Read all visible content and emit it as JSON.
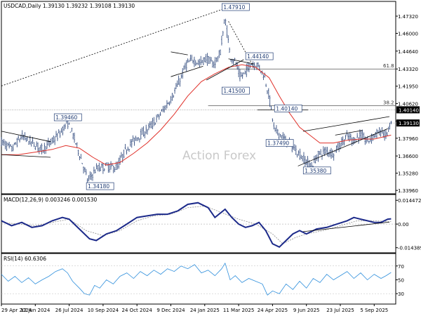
{
  "chart_data": [
    {
      "panel": "price",
      "type": "candlestick",
      "title": "USDCAD,Daily  1.39130 1.39232 1.39108 1.39130",
      "watermark": "Action Forex",
      "ylim": [
        1.337,
        1.4845
      ],
      "y_ticks": [
        1.3396,
        1.3528,
        1.366,
        1.3796,
        1.3928,
        1.4062,
        1.4195,
        1.4327,
        1.4464,
        1.46,
        1.4732
      ],
      "y_tick_labels": [
        "1.33960",
        "1.35280",
        "1.36600",
        "1.37960",
        "",
        "1.40620",
        "1.41950",
        "1.43320",
        "1.44640",
        "1.46000",
        "1.47320"
      ],
      "current_price": {
        "value": 1.3913,
        "label": "1.39130"
      },
      "level_marker": {
        "value": 1.4014,
        "label": "1.40140"
      },
      "fib_levels": [
        {
          "label": "61.8",
          "value": 1.4327
        },
        {
          "label": "38.2",
          "value": 1.4045
        }
      ],
      "x_labels": [
        "29 Apr 2024",
        "12 Jun 2024",
        "26 Jul 2024",
        "10 Sep 2024",
        "24 Oct 2024",
        "9 Dec 2024",
        "24 Jan 2025",
        "11 Mar 2025",
        "24 Apr 2025",
        "9 Jun 2025",
        "23 Jul 2025",
        "5 Sep 2025"
      ],
      "annotations": [
        {
          "text": "1.47910",
          "date_index": 6.55,
          "value": 1.4791
        },
        {
          "text": "1.39460",
          "date_index": 1.6,
          "value": 1.3946
        },
        {
          "text": "1.34180",
          "date_index": 2.55,
          "value": 1.3418
        },
        {
          "text": "1.41500",
          "date_index": 6.55,
          "value": 1.415
        },
        {
          "text": "1.44140",
          "date_index": 7.25,
          "value": 1.4414
        },
        {
          "text": "1.40140",
          "date_index": 8.1,
          "value": 1.4014
        },
        {
          "text": "1.37490",
          "date_index": 7.85,
          "value": 1.3749
        },
        {
          "text": "1.35380",
          "date_index": 8.95,
          "value": 1.3538
        }
      ],
      "path_close": [
        [
          0,
          1.377
        ],
        [
          0.3,
          1.371
        ],
        [
          0.6,
          1.381
        ],
        [
          0.9,
          1.376
        ],
        [
          1.2,
          1.371
        ],
        [
          1.5,
          1.377
        ],
        [
          1.75,
          1.384
        ],
        [
          1.95,
          1.392
        ],
        [
          2.1,
          1.383
        ],
        [
          2.35,
          1.364
        ],
        [
          2.55,
          1.347
        ],
        [
          2.8,
          1.356
        ],
        [
          3.1,
          1.358
        ],
        [
          3.4,
          1.357
        ],
        [
          3.7,
          1.372
        ],
        [
          4.0,
          1.38
        ],
        [
          4.3,
          1.386
        ],
        [
          4.55,
          1.393
        ],
        [
          4.8,
          1.402
        ],
        [
          5.05,
          1.412
        ],
        [
          5.25,
          1.423
        ],
        [
          5.45,
          1.436
        ],
        [
          5.65,
          1.44
        ],
        [
          5.85,
          1.437
        ],
        [
          6.05,
          1.441
        ],
        [
          6.25,
          1.436
        ],
        [
          6.45,
          1.444
        ],
        [
          6.6,
          1.472
        ],
        [
          6.75,
          1.443
        ],
        [
          6.9,
          1.438
        ],
        [
          7.05,
          1.426
        ],
        [
          7.2,
          1.43
        ],
        [
          7.35,
          1.437
        ],
        [
          7.55,
          1.436
        ],
        [
          7.75,
          1.428
        ],
        [
          7.9,
          1.412
        ],
        [
          8.05,
          1.386
        ],
        [
          8.25,
          1.382
        ],
        [
          8.45,
          1.376
        ],
        [
          8.7,
          1.37
        ],
        [
          8.95,
          1.363
        ],
        [
          9.15,
          1.358
        ],
        [
          9.35,
          1.367
        ],
        [
          9.6,
          1.37
        ],
        [
          9.8,
          1.368
        ],
        [
          10.0,
          1.375
        ],
        [
          10.2,
          1.381
        ],
        [
          10.4,
          1.378
        ],
        [
          10.6,
          1.382
        ],
        [
          10.8,
          1.377
        ],
        [
          11.0,
          1.382
        ],
        [
          11.2,
          1.385
        ],
        [
          11.35,
          1.381
        ],
        [
          11.5,
          1.391
        ]
      ],
      "ma_line": [
        [
          0,
          1.367
        ],
        [
          0.5,
          1.367
        ],
        [
          1.0,
          1.369
        ],
        [
          1.5,
          1.371
        ],
        [
          1.9,
          1.374
        ],
        [
          2.3,
          1.372
        ],
        [
          2.7,
          1.365
        ],
        [
          3.1,
          1.359
        ],
        [
          3.5,
          1.361
        ],
        [
          3.9,
          1.368
        ],
        [
          4.3,
          1.376
        ],
        [
          4.7,
          1.386
        ],
        [
          5.1,
          1.398
        ],
        [
          5.5,
          1.412
        ],
        [
          5.9,
          1.423
        ],
        [
          6.3,
          1.429
        ],
        [
          6.7,
          1.434
        ],
        [
          7.1,
          1.436
        ],
        [
          7.5,
          1.434
        ],
        [
          7.9,
          1.426
        ],
        [
          8.2,
          1.412
        ],
        [
          8.5,
          1.399
        ],
        [
          8.8,
          1.388
        ],
        [
          9.1,
          1.382
        ],
        [
          9.4,
          1.376
        ],
        [
          9.8,
          1.376
        ],
        [
          10.2,
          1.378
        ],
        [
          10.6,
          1.379
        ],
        [
          11.0,
          1.379
        ],
        [
          11.5,
          1.382
        ]
      ],
      "trendlines": [
        {
          "from": [
            0,
            1.385
          ],
          "to": [
            1.45,
            1.377
          ]
        },
        {
          "from": [
            0,
            1.367
          ],
          "to": [
            1.45,
            1.365
          ]
        },
        {
          "from": [
            0,
            1.4197
          ],
          "to": [
            6.55,
            1.4787
          ]
        },
        {
          "from": [
            5.0,
            1.4458
          ],
          "to": [
            5.5,
            1.4435
          ]
        },
        {
          "from": [
            5.0,
            1.4268
          ],
          "to": [
            5.95,
            1.4348
          ]
        },
        {
          "from": [
            6.05,
            1.4242
          ],
          "to": [
            7.15,
            1.4399
          ]
        },
        {
          "from": [
            6.7,
            1.4692
          ],
          "to": [
            7.45,
            1.4339
          ]
        },
        {
          "from": [
            6.7,
            1.4405
          ],
          "to": [
            7.45,
            1.4366
          ]
        },
        {
          "from": [
            7.55,
            1.4014
          ],
          "to": [
            9.05,
            1.4014
          ]
        },
        {
          "from": [
            8.9,
            1.3849
          ],
          "to": [
            11.45,
            1.3962
          ]
        },
        {
          "from": [
            8.75,
            1.3583
          ],
          "to": [
            11.4,
            1.3869
          ]
        },
        {
          "from": [
            9.85,
            1.382
          ],
          "to": [
            10.65,
            1.3856
          ]
        }
      ]
    },
    {
      "panel": "macd",
      "type": "line",
      "title": "MACD(12,26,9) 0.003246 0.001530",
      "ylim": [
        -0.0175,
        0.018
      ],
      "y_ticks": [
        0.014472,
        0.0,
        -0.014389
      ],
      "y_tick_labels": [
        "0.014472",
        "0.00",
        "-0.014389"
      ],
      "series": [
        {
          "values": [
            [
              0,
              0.002
            ],
            [
              0.3,
              -0.001
            ],
            [
              0.6,
              0.001
            ],
            [
              0.9,
              -0.002
            ],
            [
              1.2,
              -0.001
            ],
            [
              1.5,
              0.002
            ],
            [
              1.8,
              0.004
            ],
            [
              2.0,
              0.003
            ],
            [
              2.3,
              -0.003
            ],
            [
              2.6,
              -0.009
            ],
            [
              2.8,
              -0.01
            ],
            [
              3.1,
              -0.006
            ],
            [
              3.4,
              -0.004
            ],
            [
              3.7,
              0.0
            ],
            [
              4.0,
              0.004
            ],
            [
              4.3,
              0.005
            ],
            [
              4.6,
              0.006
            ],
            [
              4.9,
              0.006
            ],
            [
              5.2,
              0.008
            ],
            [
              5.5,
              0.012
            ],
            [
              5.8,
              0.013
            ],
            [
              6.1,
              0.01
            ],
            [
              6.3,
              0.004
            ],
            [
              6.6,
              0.009
            ],
            [
              6.8,
              0.004
            ],
            [
              7.0,
              0.0
            ],
            [
              7.2,
              -0.002
            ],
            [
              7.4,
              -0.001
            ],
            [
              7.6,
              0.001
            ],
            [
              7.8,
              -0.004
            ],
            [
              8.0,
              -0.012
            ],
            [
              8.2,
              -0.014
            ],
            [
              8.4,
              -0.01
            ],
            [
              8.6,
              -0.006
            ],
            [
              8.8,
              -0.004
            ],
            [
              9.0,
              -0.006
            ],
            [
              9.3,
              -0.003
            ],
            [
              9.6,
              -0.002
            ],
            [
              9.9,
              0.0
            ],
            [
              10.2,
              0.002
            ],
            [
              10.4,
              0.004
            ],
            [
              10.6,
              0.003
            ],
            [
              10.8,
              0.002
            ],
            [
              11.0,
              0.001
            ],
            [
              11.2,
              0.001
            ],
            [
              11.4,
              0.003
            ],
            [
              11.5,
              0.0032
            ]
          ]
        },
        {
          "values": [
            [
              0,
              0.001
            ],
            [
              0.5,
              0.0
            ],
            [
              1.0,
              -0.001
            ],
            [
              1.5,
              0.001
            ],
            [
              2.0,
              0.003
            ],
            [
              2.5,
              -0.004
            ],
            [
              3.0,
              -0.007
            ],
            [
              3.5,
              -0.004
            ],
            [
              4.0,
              0.002
            ],
            [
              4.5,
              0.005
            ],
            [
              5.0,
              0.006
            ],
            [
              5.5,
              0.01
            ],
            [
              6.0,
              0.011
            ],
            [
              6.5,
              0.007
            ],
            [
              7.0,
              0.003
            ],
            [
              7.5,
              0.0
            ],
            [
              8.0,
              -0.006
            ],
            [
              8.3,
              -0.012
            ],
            [
              8.7,
              -0.008
            ],
            [
              9.0,
              -0.006
            ],
            [
              9.5,
              -0.004
            ],
            [
              10.0,
              -0.001
            ],
            [
              10.5,
              0.002
            ],
            [
              11.0,
              0.002
            ],
            [
              11.5,
              0.0015
            ]
          ]
        }
      ],
      "trendlines": [
        {
          "from": [
            8.9,
            -0.0046
          ],
          "to": [
            11.45,
            0.0012
          ]
        }
      ]
    },
    {
      "panel": "rsi",
      "type": "line",
      "title": "RSI(14) 60.6306",
      "ylim": [
        15,
        88
      ],
      "y_ticks": [
        70,
        50,
        30
      ],
      "y_tick_labels": [
        "70",
        "50",
        "30"
      ],
      "series": [
        {
          "values": [
            [
              0,
              58
            ],
            [
              0.2,
              48
            ],
            [
              0.4,
              55
            ],
            [
              0.6,
              46
            ],
            [
              0.8,
              53
            ],
            [
              1.0,
              44
            ],
            [
              1.2,
              50
            ],
            [
              1.4,
              55
            ],
            [
              1.6,
              62
            ],
            [
              1.8,
              66
            ],
            [
              1.95,
              60
            ],
            [
              2.1,
              48
            ],
            [
              2.3,
              38
            ],
            [
              2.45,
              30
            ],
            [
              2.6,
              28
            ],
            [
              2.75,
              42
            ],
            [
              2.9,
              38
            ],
            [
              3.1,
              50
            ],
            [
              3.3,
              44
            ],
            [
              3.5,
              55
            ],
            [
              3.7,
              60
            ],
            [
              3.9,
              52
            ],
            [
              4.1,
              62
            ],
            [
              4.3,
              56
            ],
            [
              4.5,
              64
            ],
            [
              4.7,
              58
            ],
            [
              4.9,
              66
            ],
            [
              5.1,
              62
            ],
            [
              5.3,
              70
            ],
            [
              5.5,
              66
            ],
            [
              5.7,
              72
            ],
            [
              5.9,
              60
            ],
            [
              6.1,
              64
            ],
            [
              6.3,
              56
            ],
            [
              6.5,
              66
            ],
            [
              6.6,
              74
            ],
            [
              6.75,
              50
            ],
            [
              6.9,
              56
            ],
            [
              7.1,
              46
            ],
            [
              7.3,
              52
            ],
            [
              7.5,
              48
            ],
            [
              7.7,
              44
            ],
            [
              7.85,
              28
            ],
            [
              8.0,
              34
            ],
            [
              8.2,
              30
            ],
            [
              8.4,
              44
            ],
            [
              8.6,
              36
            ],
            [
              8.8,
              48
            ],
            [
              9.0,
              38
            ],
            [
              9.2,
              52
            ],
            [
              9.4,
              46
            ],
            [
              9.6,
              58
            ],
            [
              9.8,
              50
            ],
            [
              10.0,
              56
            ],
            [
              10.2,
              62
            ],
            [
              10.4,
              52
            ],
            [
              10.6,
              60
            ],
            [
              10.8,
              50
            ],
            [
              11.0,
              58
            ],
            [
              11.2,
              52
            ],
            [
              11.35,
              56
            ],
            [
              11.5,
              60.6
            ]
          ]
        }
      ]
    }
  ]
}
